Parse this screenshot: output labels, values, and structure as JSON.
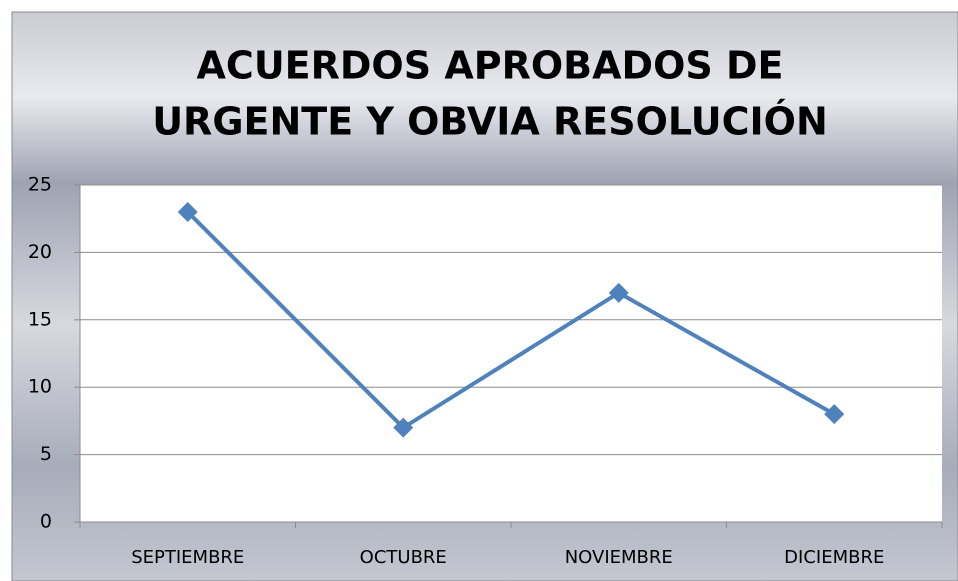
{
  "chart_data": {
    "type": "line",
    "title": [
      "ACUERDOS APROBADOS DE",
      "URGENTE Y OBVIA RESOLUCIÓN"
    ],
    "categories": [
      "SEPTIEMBRE",
      "OCTUBRE",
      "NOVIEMBRE",
      "DICIEMBRE"
    ],
    "series": [
      {
        "name": null,
        "color": "#4f81bd",
        "values": [
          23,
          7,
          17,
          8
        ]
      }
    ],
    "ylim": [
      0,
      25
    ],
    "yticks": [
      0,
      5,
      10,
      15,
      20,
      25
    ],
    "grid": true,
    "marker": "diamond"
  }
}
